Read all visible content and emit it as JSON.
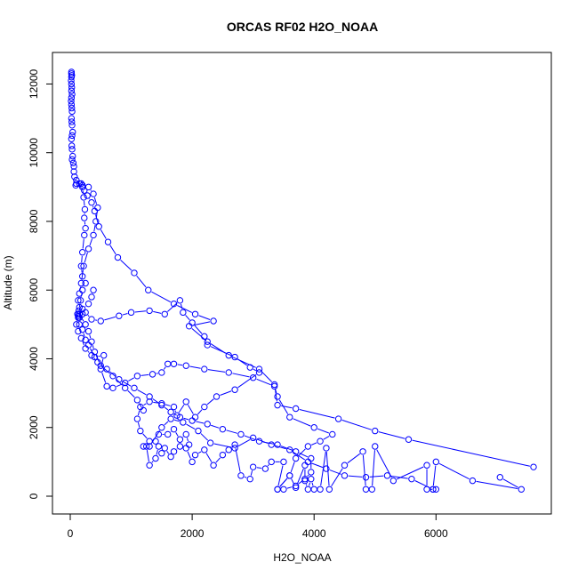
{
  "chart_data": {
    "type": "line",
    "title": "ORCAS RF02 H2O_NOAA",
    "xlabel": "H2O_NOAA",
    "ylabel": "Altitude (m)",
    "xlim": [
      0,
      7600
    ],
    "ylim": [
      0,
      12400
    ],
    "xticks": [
      0,
      2000,
      4000,
      6000
    ],
    "yticks": [
      0,
      2000,
      4000,
      6000,
      8000,
      10000,
      12000
    ],
    "grid": false,
    "marker": "open-circle",
    "color": "#0000ff",
    "series": [
      {
        "name": "",
        "points": [
          [
            20,
            12350
          ],
          [
            20,
            12300
          ],
          [
            25,
            12250
          ],
          [
            20,
            12200
          ],
          [
            15,
            12100
          ],
          [
            20,
            12000
          ],
          [
            25,
            11900
          ],
          [
            20,
            11800
          ],
          [
            30,
            11700
          ],
          [
            20,
            11600
          ],
          [
            15,
            11500
          ],
          [
            20,
            11400
          ],
          [
            25,
            11300
          ],
          [
            30,
            11200
          ],
          [
            20,
            11000
          ],
          [
            25,
            10900
          ],
          [
            30,
            10800
          ],
          [
            40,
            10600
          ],
          [
            30,
            10500
          ],
          [
            20,
            10400
          ],
          [
            25,
            10200
          ],
          [
            30,
            10100
          ],
          [
            40,
            9900
          ],
          [
            30,
            9800
          ],
          [
            50,
            9700
          ],
          [
            60,
            9600
          ],
          [
            60,
            9450
          ],
          [
            70,
            9300
          ],
          [
            100,
            9200
          ],
          [
            150,
            9100
          ],
          [
            200,
            9050
          ],
          [
            230,
            8900
          ],
          [
            280,
            8750
          ],
          [
            350,
            8550
          ],
          [
            400,
            8300
          ],
          [
            470,
            7850
          ],
          [
            620,
            7400
          ],
          [
            780,
            6950
          ],
          [
            1050,
            6500
          ],
          [
            1280,
            6000
          ],
          [
            1700,
            5600
          ],
          [
            2050,
            5300
          ],
          [
            2350,
            5100
          ],
          [
            1950,
            4950
          ],
          [
            2250,
            4500
          ],
          [
            2600,
            4100
          ],
          [
            3100,
            3700
          ],
          [
            3350,
            3250
          ],
          [
            3400,
            2650
          ],
          [
            3700,
            2550
          ],
          [
            4400,
            2250
          ],
          [
            5000,
            1900
          ],
          [
            5550,
            1650
          ],
          [
            7600,
            850
          ]
        ]
      },
      {
        "name": "",
        "points": [
          [
            7050,
            550
          ],
          [
            7400,
            200
          ],
          [
            6600,
            450
          ],
          [
            6000,
            1000
          ],
          [
            5950,
            200
          ],
          [
            6000,
            200
          ],
          [
            5850,
            200
          ],
          [
            5850,
            900
          ],
          [
            5300,
            450
          ],
          [
            5000,
            1450
          ],
          [
            4950,
            200
          ],
          [
            4850,
            200
          ],
          [
            4800,
            1300
          ],
          [
            4500,
            900
          ],
          [
            4250,
            200
          ],
          [
            4200,
            1400
          ],
          [
            4100,
            200
          ],
          [
            4000,
            200
          ],
          [
            3950,
            500
          ],
          [
            3900,
            200
          ],
          [
            3850,
            450
          ],
          [
            3850,
            900
          ],
          [
            3700,
            250
          ],
          [
            3600,
            600
          ],
          [
            3400,
            200
          ],
          [
            3500,
            1000
          ],
          [
            3300,
            1000
          ],
          [
            3200,
            800
          ],
          [
            3000,
            850
          ],
          [
            2950,
            500
          ],
          [
            2800,
            600
          ],
          [
            2700,
            1500
          ],
          [
            2600,
            1350
          ],
          [
            2500,
            1200
          ],
          [
            2350,
            900
          ],
          [
            2200,
            1350
          ],
          [
            2050,
            1200
          ],
          [
            2000,
            1000
          ],
          [
            1900,
            1400
          ],
          [
            1800,
            1450
          ],
          [
            1700,
            1300
          ],
          [
            1650,
            1150
          ],
          [
            1550,
            1400
          ],
          [
            1500,
            1250
          ],
          [
            1450,
            1450
          ],
          [
            1400,
            1100
          ],
          [
            1300,
            900
          ],
          [
            1250,
            1450
          ],
          [
            1200,
            1450
          ]
        ]
      },
      {
        "name": "",
        "points": [
          [
            1950,
            1500
          ],
          [
            1900,
            1800
          ],
          [
            1800,
            1650
          ],
          [
            1700,
            1950
          ],
          [
            1600,
            1800
          ],
          [
            1450,
            1800
          ],
          [
            1400,
            1600
          ],
          [
            1300,
            1600
          ],
          [
            1150,
            1900
          ],
          [
            1100,
            2250
          ],
          [
            1150,
            2600
          ],
          [
            1300,
            2750
          ],
          [
            1500,
            2700
          ],
          [
            1700,
            2600
          ],
          [
            1750,
            2350
          ],
          [
            1900,
            2750
          ],
          [
            2050,
            2300
          ],
          [
            2200,
            2600
          ],
          [
            2400,
            2900
          ],
          [
            2700,
            3100
          ],
          [
            3100,
            3600
          ],
          [
            2950,
            3750
          ],
          [
            2700,
            4050
          ],
          [
            2250,
            4400
          ],
          [
            2200,
            4650
          ],
          [
            2000,
            5050
          ],
          [
            1850,
            5350
          ],
          [
            1800,
            5700
          ],
          [
            1550,
            5300
          ],
          [
            1300,
            5400
          ],
          [
            1000,
            5350
          ],
          [
            800,
            5250
          ],
          [
            500,
            5100
          ],
          [
            350,
            5150
          ],
          [
            250,
            5350
          ],
          [
            200,
            5300
          ],
          [
            150,
            5200
          ],
          [
            130,
            5250
          ]
        ]
      },
      {
        "name": "",
        "points": [
          [
            3400,
            200
          ],
          [
            3600,
            600
          ],
          [
            3700,
            1100
          ],
          [
            3900,
            1450
          ],
          [
            4100,
            1600
          ],
          [
            4300,
            1800
          ],
          [
            4000,
            2000
          ],
          [
            3600,
            2300
          ],
          [
            3400,
            2900
          ],
          [
            3350,
            3200
          ],
          [
            3000,
            3450
          ],
          [
            2600,
            3600
          ],
          [
            2200,
            3700
          ],
          [
            1900,
            3800
          ],
          [
            1700,
            3850
          ],
          [
            1600,
            3850
          ],
          [
            1500,
            3600
          ],
          [
            1350,
            3550
          ],
          [
            1100,
            3500
          ],
          [
            900,
            3300
          ],
          [
            700,
            3150
          ],
          [
            600,
            3200
          ],
          [
            500,
            3700
          ],
          [
            550,
            4100
          ],
          [
            400,
            4050
          ],
          [
            300,
            4400
          ],
          [
            250,
            4550
          ],
          [
            200,
            4850
          ],
          [
            150,
            5000
          ],
          [
            130,
            5200
          ],
          [
            120,
            5300
          ],
          [
            140,
            5400
          ],
          [
            170,
            5700
          ],
          [
            200,
            6000
          ],
          [
            250,
            6200
          ],
          [
            200,
            6400
          ],
          [
            180,
            6700
          ],
          [
            200,
            7100
          ],
          [
            230,
            7600
          ],
          [
            250,
            7800
          ],
          [
            230,
            8100
          ],
          [
            240,
            8350
          ],
          [
            220,
            8700
          ],
          [
            200,
            9000
          ],
          [
            180,
            9100
          ],
          [
            100,
            9100
          ],
          [
            90,
            9050
          ]
        ]
      },
      {
        "name": "",
        "points": [
          [
            1200,
            2500
          ],
          [
            1100,
            2800
          ],
          [
            900,
            3150
          ],
          [
            700,
            3500
          ],
          [
            500,
            3800
          ],
          [
            400,
            4200
          ],
          [
            350,
            4500
          ],
          [
            300,
            4800
          ],
          [
            250,
            5000
          ],
          [
            150,
            5300
          ],
          [
            150,
            5500
          ],
          [
            130,
            5700
          ],
          [
            150,
            5900
          ],
          [
            180,
            6200
          ],
          [
            220,
            6700
          ],
          [
            300,
            7200
          ],
          [
            380,
            7600
          ],
          [
            420,
            8000
          ],
          [
            450,
            8400
          ],
          [
            380,
            8800
          ],
          [
            300,
            9000
          ]
        ]
      },
      {
        "name": "",
        "points": [
          [
            1300,
            1450
          ],
          [
            1500,
            2000
          ],
          [
            1650,
            2250
          ],
          [
            1850,
            2150
          ],
          [
            2100,
            1900
          ],
          [
            2300,
            1550
          ],
          [
            2700,
            1400
          ],
          [
            3000,
            1700
          ],
          [
            3300,
            1500
          ],
          [
            3600,
            1350
          ],
          [
            3900,
            1000
          ],
          [
            4200,
            800
          ],
          [
            4500,
            600
          ],
          [
            4850,
            550
          ],
          [
            5200,
            600
          ],
          [
            5600,
            500
          ],
          [
            5950,
            200
          ]
        ]
      },
      {
        "name": "",
        "points": [
          [
            380,
            6000
          ],
          [
            350,
            5800
          ],
          [
            300,
            5600
          ],
          [
            200,
            5450
          ],
          [
            120,
            5300
          ],
          [
            100,
            5000
          ],
          [
            130,
            4800
          ],
          [
            180,
            4600
          ],
          [
            250,
            4300
          ],
          [
            350,
            4100
          ],
          [
            450,
            3900
          ],
          [
            600,
            3700
          ],
          [
            800,
            3400
          ],
          [
            1050,
            3150
          ],
          [
            1300,
            2900
          ],
          [
            1500,
            2650
          ],
          [
            1650,
            2450
          ],
          [
            1800,
            2300
          ],
          [
            2000,
            2200
          ],
          [
            2250,
            2100
          ],
          [
            2500,
            1950
          ],
          [
            2800,
            1800
          ],
          [
            3100,
            1600
          ],
          [
            3400,
            1500
          ],
          [
            3700,
            1300
          ],
          [
            3950,
            1100
          ],
          [
            3950,
            700
          ],
          [
            3850,
            500
          ],
          [
            3700,
            300
          ],
          [
            3500,
            200
          ]
        ]
      }
    ]
  }
}
